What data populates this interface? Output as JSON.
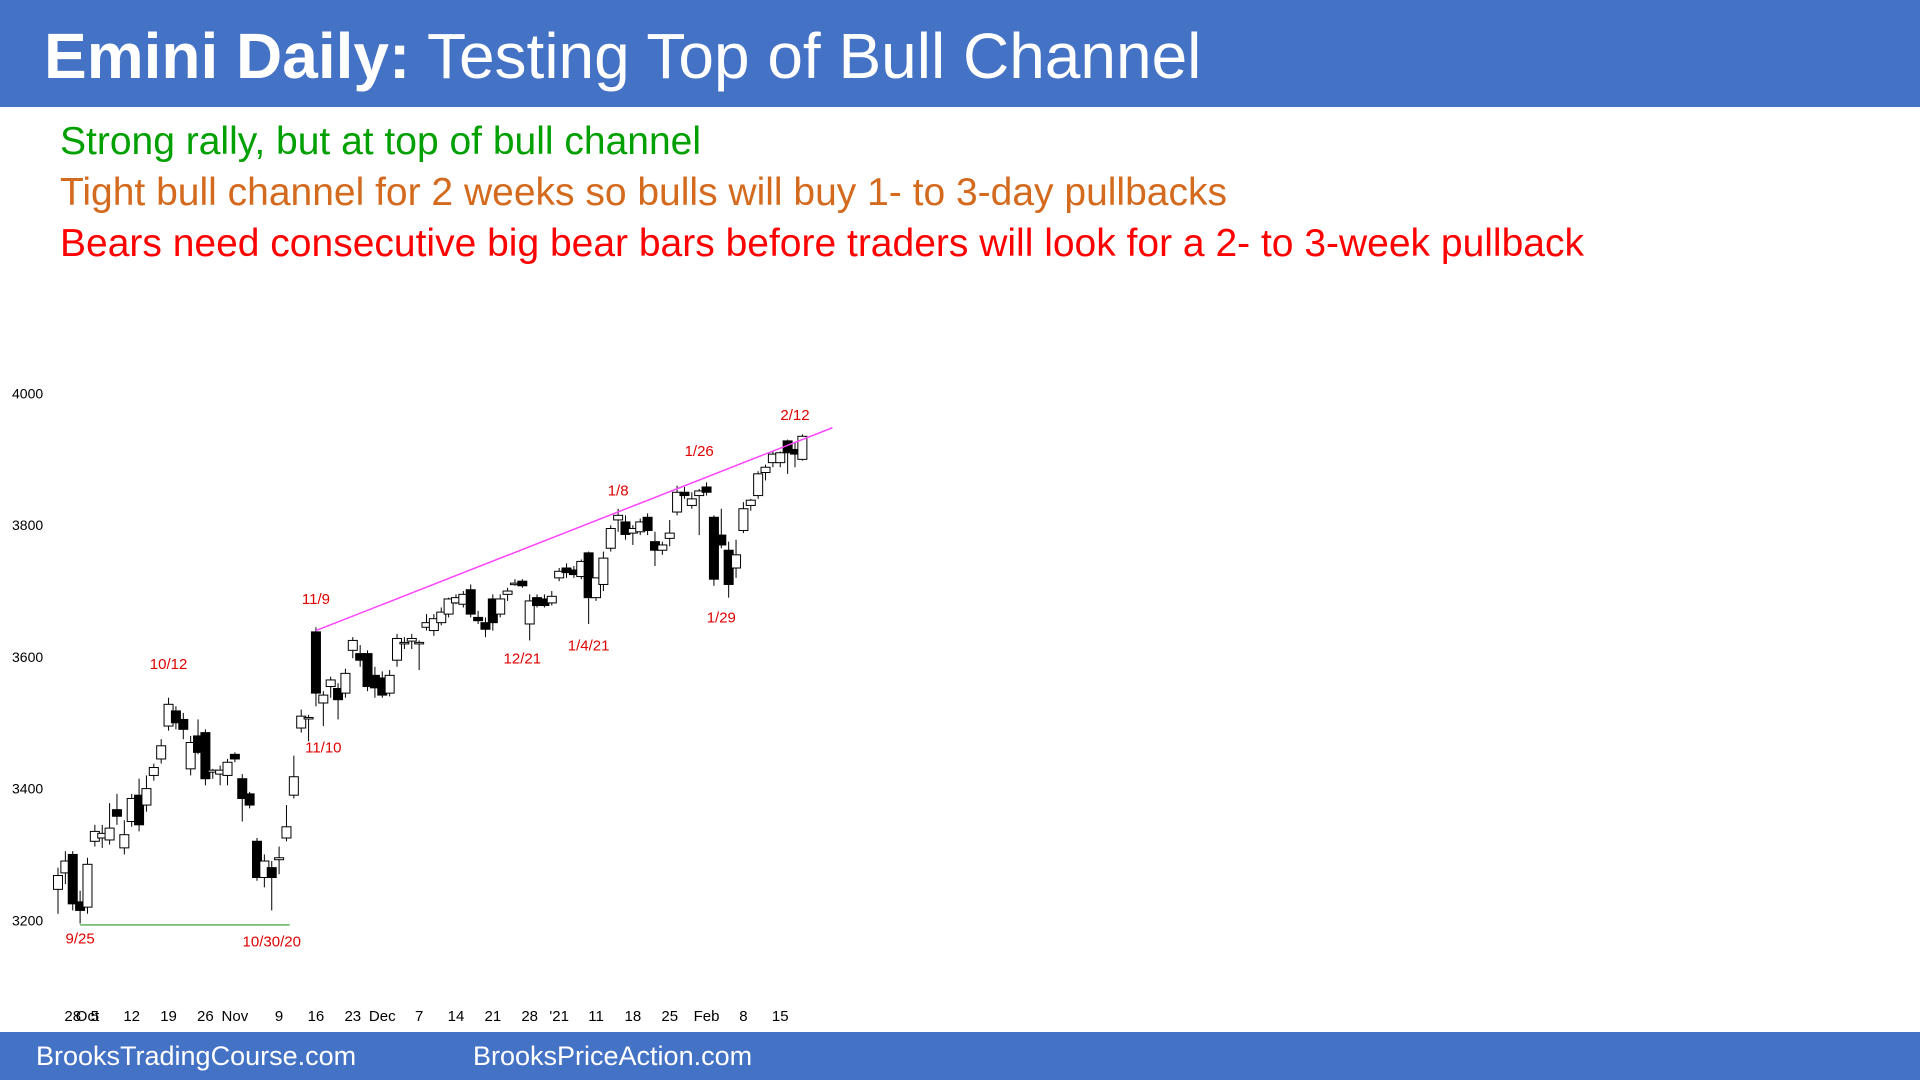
{
  "header": {
    "title_bold": "Emini Daily:",
    "title_rest": "Testing Top of Bull Channel",
    "background_color": "#4472C4"
  },
  "notes": [
    {
      "text": "Strong rally, but at top of bull channel",
      "color": "#00A000"
    },
    {
      "text": "Tight bull channel for 2 weeks so bulls will buy 1- to 3-day pullbacks",
      "color": "#D46A1E"
    },
    {
      "text": "Bears need consecutive big bear bars before traders will look for a 2- to 3-week pullback",
      "color": "#FF0000"
    }
  ],
  "chart_data": {
    "type": "candlestick",
    "title": "",
    "xlabel": "",
    "ylabel": "",
    "ylim": [
      3100,
      4050
    ],
    "yticks": [
      3200,
      3400,
      3600,
      3800,
      4000
    ],
    "xtick_labels": [
      {
        "label": "28",
        "bar": 2
      },
      {
        "label": "Oct",
        "bar": 4
      },
      {
        "label": "5",
        "bar": 5
      },
      {
        "label": "12",
        "bar": 10
      },
      {
        "label": "19",
        "bar": 15
      },
      {
        "label": "26",
        "bar": 20
      },
      {
        "label": "Nov",
        "bar": 24
      },
      {
        "label": "9",
        "bar": 30
      },
      {
        "label": "16",
        "bar": 35
      },
      {
        "label": "23",
        "bar": 40
      },
      {
        "label": "Dec",
        "bar": 44
      },
      {
        "label": "7",
        "bar": 49
      },
      {
        "label": "14",
        "bar": 54
      },
      {
        "label": "21",
        "bar": 59
      },
      {
        "label": "28",
        "bar": 64
      },
      {
        "label": "'21",
        "bar": 68
      },
      {
        "label": "11",
        "bar": 73
      },
      {
        "label": "18",
        "bar": 78
      },
      {
        "label": "25",
        "bar": 83
      },
      {
        "label": "Feb",
        "bar": 88
      },
      {
        "label": "8",
        "bar": 93
      },
      {
        "label": "15",
        "bar": 98
      }
    ],
    "bars": [
      {
        "o": 3247,
        "h": 3280,
        "l": 3210,
        "c": 3268
      },
      {
        "o": 3272,
        "h": 3305,
        "l": 3255,
        "c": 3290
      },
      {
        "o": 3300,
        "h": 3305,
        "l": 3215,
        "c": 3225
      },
      {
        "o": 3228,
        "h": 3245,
        "l": 3195,
        "c": 3215
      },
      {
        "o": 3220,
        "h": 3295,
        "l": 3210,
        "c": 3285
      },
      {
        "o": 3320,
        "h": 3345,
        "l": 3312,
        "c": 3335
      },
      {
        "o": 3325,
        "h": 3345,
        "l": 3310,
        "c": 3332
      },
      {
        "o": 3322,
        "h": 3378,
        "l": 3315,
        "c": 3340
      },
      {
        "o": 3368,
        "h": 3392,
        "l": 3345,
        "c": 3358
      },
      {
        "o": 3310,
        "h": 3352,
        "l": 3300,
        "c": 3330
      },
      {
        "o": 3350,
        "h": 3392,
        "l": 3342,
        "c": 3385
      },
      {
        "o": 3390,
        "h": 3415,
        "l": 3335,
        "c": 3345
      },
      {
        "o": 3375,
        "h": 3420,
        "l": 3365,
        "c": 3400
      },
      {
        "o": 3420,
        "h": 3438,
        "l": 3412,
        "c": 3432
      },
      {
        "o": 3445,
        "h": 3475,
        "l": 3438,
        "c": 3465
      },
      {
        "o": 3495,
        "h": 3538,
        "l": 3488,
        "c": 3528
      },
      {
        "o": 3518,
        "h": 3525,
        "l": 3490,
        "c": 3500
      },
      {
        "o": 3505,
        "h": 3515,
        "l": 3475,
        "c": 3490
      },
      {
        "o": 3430,
        "h": 3480,
        "l": 3420,
        "c": 3470
      },
      {
        "o": 3480,
        "h": 3505,
        "l": 3452,
        "c": 3455
      },
      {
        "o": 3485,
        "h": 3490,
        "l": 3405,
        "c": 3415
      },
      {
        "o": 3425,
        "h": 3430,
        "l": 3415,
        "c": 3428
      },
      {
        "o": 3422,
        "h": 3435,
        "l": 3405,
        "c": 3428
      },
      {
        "o": 3420,
        "h": 3445,
        "l": 3405,
        "c": 3440
      },
      {
        "o": 3452,
        "h": 3455,
        "l": 3440,
        "c": 3445
      },
      {
        "o": 3415,
        "h": 3422,
        "l": 3350,
        "c": 3385
      },
      {
        "o": 3392,
        "h": 3395,
        "l": 3370,
        "c": 3375
      },
      {
        "o": 3320,
        "h": 3325,
        "l": 3260,
        "c": 3265
      },
      {
        "o": 3265,
        "h": 3300,
        "l": 3250,
        "c": 3290
      },
      {
        "o": 3280,
        "h": 3290,
        "l": 3215,
        "c": 3265
      },
      {
        "o": 3292,
        "h": 3312,
        "l": 3270,
        "c": 3295
      },
      {
        "o": 3325,
        "h": 3375,
        "l": 3320,
        "c": 3342
      },
      {
        "o": 3390,
        "h": 3450,
        "l": 3385,
        "c": 3418
      },
      {
        "o": 3492,
        "h": 3520,
        "l": 3485,
        "c": 3510
      },
      {
        "o": 3508,
        "h": 3512,
        "l": 3472,
        "c": 3508
      },
      {
        "o": 3638,
        "h": 3645,
        "l": 3525,
        "c": 3545
      },
      {
        "o": 3530,
        "h": 3548,
        "l": 3495,
        "c": 3542
      },
      {
        "o": 3555,
        "h": 3570,
        "l": 3538,
        "c": 3565
      },
      {
        "o": 3552,
        "h": 3560,
        "l": 3505,
        "c": 3535
      },
      {
        "o": 3545,
        "h": 3582,
        "l": 3538,
        "c": 3575
      },
      {
        "o": 3610,
        "h": 3630,
        "l": 3598,
        "c": 3625
      },
      {
        "o": 3605,
        "h": 3618,
        "l": 3585,
        "c": 3595
      },
      {
        "o": 3605,
        "h": 3610,
        "l": 3548,
        "c": 3555
      },
      {
        "o": 3572,
        "h": 3585,
        "l": 3538,
        "c": 3553
      },
      {
        "o": 3568,
        "h": 3578,
        "l": 3538,
        "c": 3542
      },
      {
        "o": 3545,
        "h": 3580,
        "l": 3540,
        "c": 3572
      },
      {
        "o": 3595,
        "h": 3635,
        "l": 3585,
        "c": 3628
      },
      {
        "o": 3620,
        "h": 3630,
        "l": 3612,
        "c": 3622
      },
      {
        "o": 3624,
        "h": 3635,
        "l": 3612,
        "c": 3628
      },
      {
        "o": 3620,
        "h": 3625,
        "l": 3580,
        "c": 3622
      },
      {
        "o": 3645,
        "h": 3665,
        "l": 3640,
        "c": 3652
      },
      {
        "o": 3640,
        "h": 3665,
        "l": 3632,
        "c": 3658
      },
      {
        "o": 3652,
        "h": 3675,
        "l": 3648,
        "c": 3668
      },
      {
        "o": 3665,
        "h": 3690,
        "l": 3660,
        "c": 3688
      },
      {
        "o": 3682,
        "h": 3695,
        "l": 3680,
        "c": 3690
      },
      {
        "o": 3680,
        "h": 3700,
        "l": 3675,
        "c": 3695
      },
      {
        "o": 3702,
        "h": 3710,
        "l": 3660,
        "c": 3665
      },
      {
        "o": 3660,
        "h": 3670,
        "l": 3650,
        "c": 3655
      },
      {
        "o": 3652,
        "h": 3660,
        "l": 3630,
        "c": 3642
      },
      {
        "o": 3688,
        "h": 3695,
        "l": 3640,
        "c": 3652
      },
      {
        "o": 3665,
        "h": 3695,
        "l": 3660,
        "c": 3688
      },
      {
        "o": 3695,
        "h": 3705,
        "l": 3685,
        "c": 3700
      },
      {
        "o": 3712,
        "h": 3718,
        "l": 3708,
        "c": 3712
      },
      {
        "o": 3715,
        "h": 3718,
        "l": 3705,
        "c": 3708
      },
      {
        "o": 3650,
        "h": 3695,
        "l": 3625,
        "c": 3685
      },
      {
        "o": 3690,
        "h": 3695,
        "l": 3675,
        "c": 3678
      },
      {
        "o": 3688,
        "h": 3695,
        "l": 3675,
        "c": 3678
      },
      {
        "o": 3682,
        "h": 3700,
        "l": 3678,
        "c": 3692
      },
      {
        "o": 3720,
        "h": 3735,
        "l": 3715,
        "c": 3730
      },
      {
        "o": 3735,
        "h": 3742,
        "l": 3720,
        "c": 3728
      },
      {
        "o": 3732,
        "h": 3738,
        "l": 3720,
        "c": 3725
      },
      {
        "o": 3722,
        "h": 3748,
        "l": 3718,
        "c": 3745
      },
      {
        "o": 3758,
        "h": 3760,
        "l": 3650,
        "c": 3690
      },
      {
        "o": 3690,
        "h": 3720,
        "l": 3685,
        "c": 3720
      },
      {
        "o": 3710,
        "h": 3760,
        "l": 3700,
        "c": 3750
      },
      {
        "o": 3765,
        "h": 3800,
        "l": 3760,
        "c": 3795
      },
      {
        "o": 3808,
        "h": 3825,
        "l": 3790,
        "c": 3815
      },
      {
        "o": 3805,
        "h": 3815,
        "l": 3778,
        "c": 3786
      },
      {
        "o": 3788,
        "h": 3800,
        "l": 3770,
        "c": 3795
      },
      {
        "o": 3790,
        "h": 3810,
        "l": 3785,
        "c": 3805
      },
      {
        "o": 3812,
        "h": 3818,
        "l": 3785,
        "c": 3792
      },
      {
        "o": 3775,
        "h": 3790,
        "l": 3738,
        "c": 3762
      },
      {
        "o": 3762,
        "h": 3775,
        "l": 3755,
        "c": 3770
      },
      {
        "o": 3780,
        "h": 3808,
        "l": 3768,
        "c": 3788
      },
      {
        "o": 3820,
        "h": 3860,
        "l": 3815,
        "c": 3850
      },
      {
        "o": 3850,
        "h": 3858,
        "l": 3840,
        "c": 3845
      },
      {
        "o": 3830,
        "h": 3850,
        "l": 3825,
        "c": 3840
      },
      {
        "o": 3845,
        "h": 3855,
        "l": 3785,
        "c": 3852
      },
      {
        "o": 3858,
        "h": 3865,
        "l": 3845,
        "c": 3850
      },
      {
        "o": 3812,
        "h": 3815,
        "l": 3708,
        "c": 3718
      },
      {
        "o": 3785,
        "h": 3825,
        "l": 3765,
        "c": 3770
      },
      {
        "o": 3762,
        "h": 3775,
        "l": 3690,
        "c": 3710
      },
      {
        "o": 3735,
        "h": 3778,
        "l": 3720,
        "c": 3755
      },
      {
        "o": 3792,
        "h": 3835,
        "l": 3788,
        "c": 3825
      },
      {
        "o": 3830,
        "h": 3840,
        "l": 3822,
        "c": 3838
      },
      {
        "o": 3845,
        "h": 3882,
        "l": 3840,
        "c": 3878
      },
      {
        "o": 3880,
        "h": 3892,
        "l": 3868,
        "c": 3888
      },
      {
        "o": 3895,
        "h": 3912,
        "l": 3888,
        "c": 3908
      },
      {
        "o": 3895,
        "h": 3912,
        "l": 3888,
        "c": 3910
      },
      {
        "o": 3928,
        "h": 3930,
        "l": 3878,
        "c": 3910
      },
      {
        "o": 3915,
        "h": 3925,
        "l": 3888,
        "c": 3908
      },
      {
        "o": 3900,
        "h": 3938,
        "l": 3898,
        "c": 3935
      }
    ],
    "channel_line": {
      "from_bar": 35,
      "from_value": 3640,
      "to_bar": 101,
      "to_value": 3948,
      "color": "#FF44FF"
    },
    "support_line": {
      "from_bar": 3,
      "to_bar": 29,
      "value": 3193,
      "color": "#5DB25D"
    },
    "annotations": [
      {
        "text": "10/12",
        "bar": 15,
        "value": 3582
      },
      {
        "text": "9/25",
        "bar": 3,
        "value": 3165
      },
      {
        "text": "10/30/20",
        "bar": 29,
        "value": 3160
      },
      {
        "text": "11/9",
        "bar": 35,
        "value": 3680
      },
      {
        "text": "11/10",
        "bar": 36,
        "value": 3455
      },
      {
        "text": "12/21",
        "bar": 63,
        "value": 3590
      },
      {
        "text": "1/4/21",
        "bar": 72,
        "value": 3610
      },
      {
        "text": "1/8",
        "bar": 76,
        "value": 3845
      },
      {
        "text": "1/26",
        "bar": 87,
        "value": 3905
      },
      {
        "text": "1/29",
        "bar": 90,
        "value": 3652
      },
      {
        "text": "2/12",
        "bar": 100,
        "value": 3960
      }
    ]
  },
  "footer": {
    "left_text": "BrooksTradingCourse.com",
    "right_text": "BrooksPriceAction.com"
  }
}
